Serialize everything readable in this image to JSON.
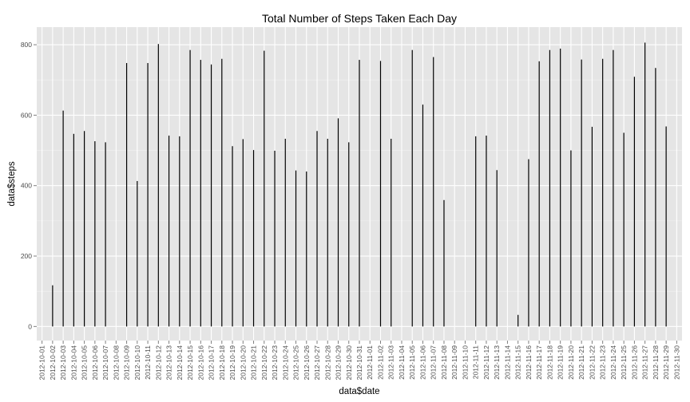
{
  "chart_data": {
    "type": "bar",
    "title": "Total Number of Steps Taken Each Day",
    "xlabel": "data$date",
    "ylabel": "data$steps",
    "ylim": [
      -40,
      850
    ],
    "yticks": [
      0,
      200,
      400,
      600,
      800
    ],
    "grid": true,
    "categories": [
      "2012-10-01",
      "2012-10-02",
      "2012-10-03",
      "2012-10-04",
      "2012-10-05",
      "2012-10-06",
      "2012-10-07",
      "2012-10-08",
      "2012-10-09",
      "2012-10-10",
      "2012-10-11",
      "2012-10-12",
      "2012-10-13",
      "2012-10-14",
      "2012-10-15",
      "2012-10-16",
      "2012-10-17",
      "2012-10-18",
      "2012-10-19",
      "2012-10-20",
      "2012-10-21",
      "2012-10-22",
      "2012-10-23",
      "2012-10-24",
      "2012-10-25",
      "2012-10-26",
      "2012-10-27",
      "2012-10-28",
      "2012-10-29",
      "2012-10-30",
      "2012-10-31",
      "2012-11-01",
      "2012-11-02",
      "2012-11-03",
      "2012-11-04",
      "2012-11-05",
      "2012-11-06",
      "2012-11-07",
      "2012-11-08",
      "2012-11-09",
      "2012-11-10",
      "2012-11-11",
      "2012-11-12",
      "2012-11-13",
      "2012-11-14",
      "2012-11-15",
      "2012-11-16",
      "2012-11-17",
      "2012-11-18",
      "2012-11-19",
      "2012-11-20",
      "2012-11-21",
      "2012-11-22",
      "2012-11-23",
      "2012-11-24",
      "2012-11-25",
      "2012-11-26",
      "2012-11-27",
      "2012-11-28",
      "2012-11-29",
      "2012-11-30"
    ],
    "values": [
      null,
      117,
      613,
      547,
      555,
      526,
      523,
      null,
      748,
      413,
      748,
      802,
      542,
      540,
      785,
      757,
      744,
      760,
      512,
      532,
      501,
      783,
      499,
      533,
      443,
      440,
      555,
      533,
      591,
      523,
      757,
      null,
      754,
      533,
      null,
      785,
      630,
      765,
      359,
      null,
      null,
      540,
      542,
      444,
      null,
      33,
      475,
      753,
      785,
      789,
      500,
      758,
      567,
      760,
      785,
      550,
      709,
      806,
      734,
      568,
      null
    ]
  },
  "colors": {
    "panel": "#e5e5e5",
    "grid_major": "#ffffff",
    "grid_minor": "#f2f2f2",
    "bar": "#000000"
  }
}
